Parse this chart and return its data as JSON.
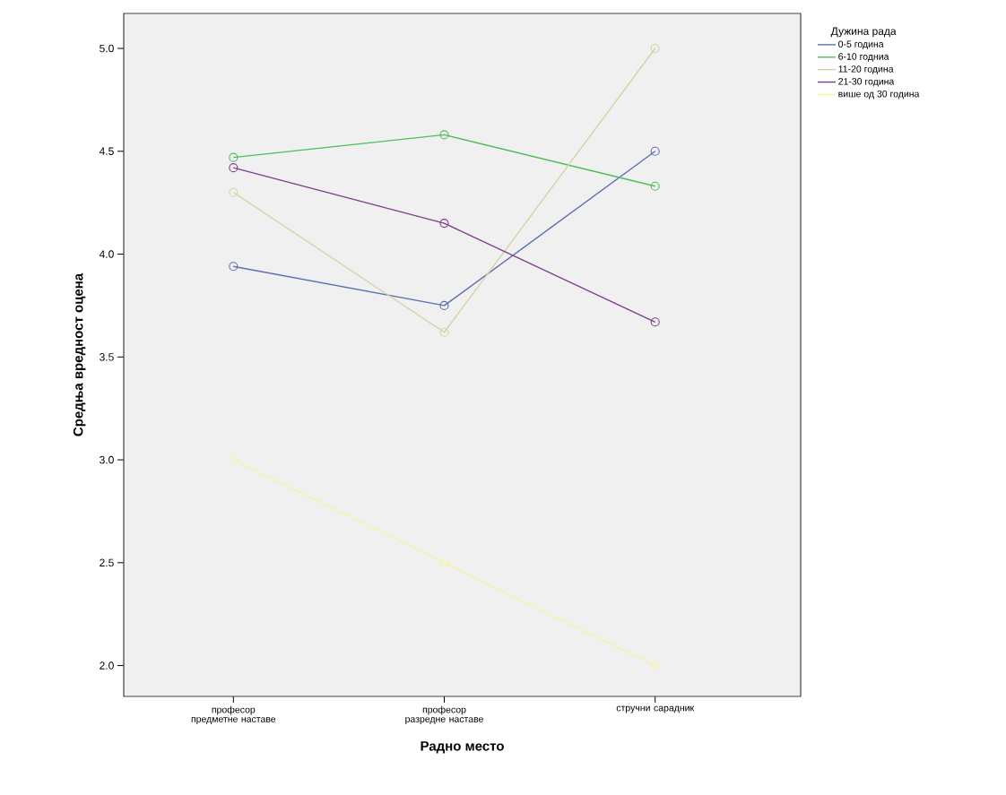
{
  "chart_data": {
    "type": "line",
    "xlabel": "Радно место",
    "ylabel": "Средња вредност оцена",
    "legend_title": "Дужина рада",
    "categories": [
      "професор предметне наставе",
      "професор разредне наставе",
      "стручни сарадник"
    ],
    "series": [
      {
        "name": "0-5 година",
        "color": "#5c6fae",
        "values": [
          3.94,
          3.75,
          4.5
        ]
      },
      {
        "name": "6-10 годниа",
        "color": "#4cbf5a",
        "values": [
          4.47,
          4.58,
          4.33
        ]
      },
      {
        "name": "11-20 година",
        "color": "#d6d2a6",
        "values": [
          4.3,
          3.62,
          5.0
        ]
      },
      {
        "name": "21-30 година",
        "color": "#7e3f8e",
        "values": [
          4.42,
          4.15,
          3.67
        ]
      },
      {
        "name": "више од 30 година",
        "color": "#f6f2a2",
        "values": [
          3.0,
          2.5,
          2.0
        ]
      }
    ],
    "ylim": [
      1.85,
      5.17
    ],
    "yticks": [
      {
        "value": 2,
        "label": "2.0"
      },
      2.5,
      {
        "value": 3,
        "label": "3.0"
      },
      3.5,
      {
        "value": 4,
        "label": "4.0"
      },
      4.5,
      {
        "value": 5,
        "label": "5.0"
      }
    ],
    "grid": false,
    "legend": "right",
    "marker": "circle",
    "line_style": "solid"
  }
}
